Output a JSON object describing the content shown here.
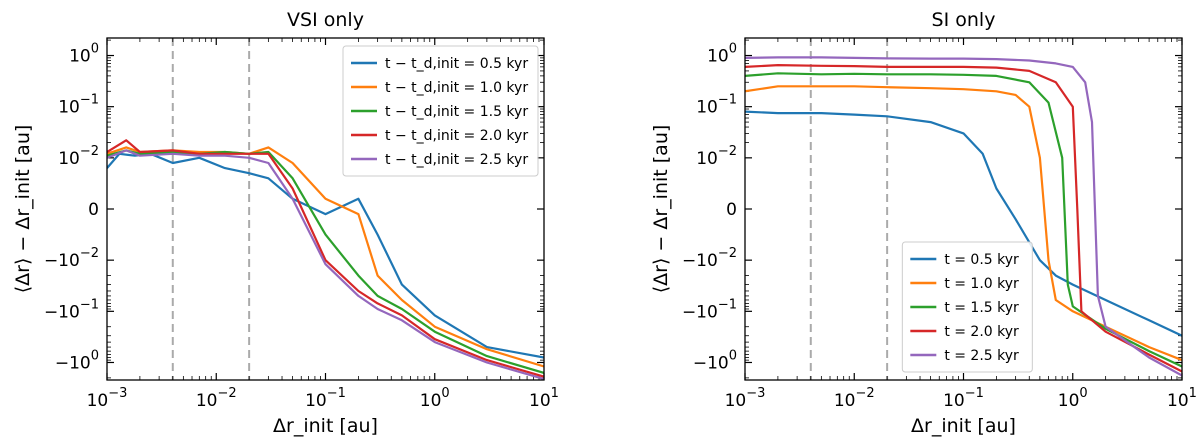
{
  "chart_data": [
    {
      "type": "line",
      "title": "VSI only",
      "xlabel": "Δr_init [au]",
      "ylabel": "⟨Δr⟩ − Δr_init [au]",
      "xscale": "log",
      "yscale": "symlog",
      "xlim": [
        0.001,
        10
      ],
      "ylim": [
        -2.2,
        2.2
      ],
      "x_tick_labels": [
        "10^-3",
        "10^-2",
        "10^-1",
        "10^0",
        "10^1"
      ],
      "y_tick_labels": [
        "10^0",
        "10^-1",
        "10^-2",
        "0",
        "-10^-2",
        "-10^-1",
        "-10^0"
      ],
      "vlines": [
        0.004,
        0.02
      ],
      "legend_position": "upper right",
      "series": [
        {
          "name": "t − t_d,init = 0.5 kyr",
          "color": "#1f77b4",
          "x": [
            0.001,
            0.0013,
            0.0018,
            0.0025,
            0.004,
            0.007,
            0.012,
            0.02,
            0.03,
            0.05,
            0.1,
            0.2,
            0.3,
            0.5,
            1,
            3,
            10
          ],
          "y": [
            0.008,
            0.012,
            0.011,
            0.012,
            0.009,
            0.01,
            0.008,
            0.007,
            0.006,
            0.002,
            -0.001,
            0.002,
            -0.005,
            -0.03,
            -0.12,
            -0.5,
            -0.8
          ]
        },
        {
          "name": "t − t_d,init = 1.0 kyr",
          "color": "#ff7f0e",
          "x": [
            0.001,
            0.0015,
            0.002,
            0.004,
            0.007,
            0.012,
            0.02,
            0.03,
            0.05,
            0.1,
            0.2,
            0.3,
            0.5,
            1,
            3,
            10
          ],
          "y": [
            0.012,
            0.016,
            0.013,
            0.014,
            0.013,
            0.013,
            0.012,
            0.016,
            0.009,
            0.002,
            -0.001,
            -0.02,
            -0.06,
            -0.2,
            -0.55,
            -1.2
          ]
        },
        {
          "name": "t − t_d,init = 1.5 kyr",
          "color": "#2ca02c",
          "x": [
            0.001,
            0.0015,
            0.002,
            0.004,
            0.007,
            0.012,
            0.02,
            0.03,
            0.05,
            0.1,
            0.2,
            0.3,
            0.5,
            1,
            3,
            10
          ],
          "y": [
            0.011,
            0.014,
            0.012,
            0.013,
            0.012,
            0.013,
            0.012,
            0.013,
            0.006,
            -0.005,
            -0.02,
            -0.05,
            -0.09,
            -0.25,
            -0.75,
            -1.6
          ]
        },
        {
          "name": "t − t_d,init = 2.0 kyr",
          "color": "#d62728",
          "x": [
            0.001,
            0.0015,
            0.002,
            0.004,
            0.007,
            0.012,
            0.02,
            0.03,
            0.05,
            0.1,
            0.2,
            0.3,
            0.5,
            1,
            3,
            10
          ],
          "y": [
            0.013,
            0.022,
            0.013,
            0.014,
            0.012,
            0.012,
            0.012,
            0.012,
            0.004,
            -0.01,
            -0.04,
            -0.07,
            -0.12,
            -0.35,
            -0.9,
            -1.9
          ]
        },
        {
          "name": "t − t_d,init = 2.5 kyr",
          "color": "#9467bd",
          "x": [
            0.001,
            0.0015,
            0.002,
            0.004,
            0.007,
            0.012,
            0.02,
            0.03,
            0.05,
            0.1,
            0.2,
            0.3,
            0.5,
            1,
            3,
            10
          ],
          "y": [
            0.01,
            0.014,
            0.011,
            0.012,
            0.011,
            0.011,
            0.01,
            0.009,
            0.002,
            -0.012,
            -0.05,
            -0.09,
            -0.15,
            -0.4,
            -1.0,
            -2.1
          ]
        }
      ]
    },
    {
      "type": "line",
      "title": "SI only",
      "xlabel": "Δr_init [au]",
      "ylabel": "⟨Δr⟩ − Δr_init [au]",
      "xscale": "log",
      "yscale": "symlog",
      "xlim": [
        0.001,
        10
      ],
      "ylim": [
        -2.2,
        2.2
      ],
      "x_tick_labels": [
        "10^-3",
        "10^-2",
        "10^-1",
        "10^0",
        "10^1"
      ],
      "y_tick_labels": [
        "10^0",
        "10^-1",
        "10^-2",
        "0",
        "-10^-2",
        "-10^-1",
        "-10^0"
      ],
      "vlines": [
        0.004,
        0.02
      ],
      "legend_position": "lower center",
      "series": [
        {
          "name": "t = 0.5 kyr",
          "color": "#1f77b4",
          "x": [
            0.001,
            0.002,
            0.005,
            0.01,
            0.02,
            0.05,
            0.1,
            0.15,
            0.2,
            0.3,
            0.5,
            0.7,
            1,
            2,
            5,
            10
          ],
          "y": [
            0.08,
            0.075,
            0.075,
            0.07,
            0.065,
            0.05,
            0.03,
            0.012,
            0.004,
            -0.002,
            -0.01,
            -0.02,
            -0.03,
            -0.06,
            -0.15,
            -0.3
          ]
        },
        {
          "name": "t = 1.0 kyr",
          "color": "#ff7f0e",
          "x": [
            0.001,
            0.002,
            0.005,
            0.01,
            0.02,
            0.05,
            0.1,
            0.2,
            0.3,
            0.4,
            0.5,
            0.6,
            0.7,
            1,
            2,
            5,
            10
          ],
          "y": [
            0.2,
            0.25,
            0.25,
            0.25,
            0.24,
            0.23,
            0.22,
            0.2,
            0.17,
            0.1,
            0.01,
            -0.01,
            -0.06,
            -0.1,
            -0.2,
            -0.5,
            -0.9
          ]
        },
        {
          "name": "t = 1.5 kyr",
          "color": "#2ca02c",
          "x": [
            0.001,
            0.002,
            0.005,
            0.01,
            0.02,
            0.05,
            0.1,
            0.2,
            0.4,
            0.6,
            0.8,
            0.9,
            1.0,
            2,
            5,
            10
          ],
          "y": [
            0.4,
            0.45,
            0.43,
            0.44,
            0.43,
            0.43,
            0.42,
            0.4,
            0.3,
            0.12,
            0.01,
            -0.03,
            -0.08,
            -0.22,
            -0.6,
            -1.2
          ]
        },
        {
          "name": "t = 2.0 kyr",
          "color": "#d62728",
          "x": [
            0.001,
            0.002,
            0.005,
            0.01,
            0.02,
            0.05,
            0.1,
            0.2,
            0.4,
            0.7,
            1.0,
            1.1,
            1.2,
            2,
            5,
            10
          ],
          "y": [
            0.6,
            0.65,
            0.63,
            0.62,
            0.6,
            0.6,
            0.6,
            0.58,
            0.5,
            0.3,
            0.1,
            0.0,
            -0.1,
            -0.25,
            -0.7,
            -1.5
          ]
        },
        {
          "name": "t = 2.5 kyr",
          "color": "#9467bd",
          "x": [
            0.001,
            0.002,
            0.005,
            0.01,
            0.02,
            0.05,
            0.1,
            0.2,
            0.4,
            0.7,
            1.0,
            1.3,
            1.5,
            1.7,
            2,
            5,
            10
          ],
          "y": [
            0.9,
            0.92,
            0.92,
            0.9,
            0.88,
            0.87,
            0.87,
            0.85,
            0.8,
            0.7,
            0.6,
            0.3,
            0.05,
            -0.05,
            -0.2,
            -0.8,
            -1.8
          ]
        }
      ]
    }
  ]
}
